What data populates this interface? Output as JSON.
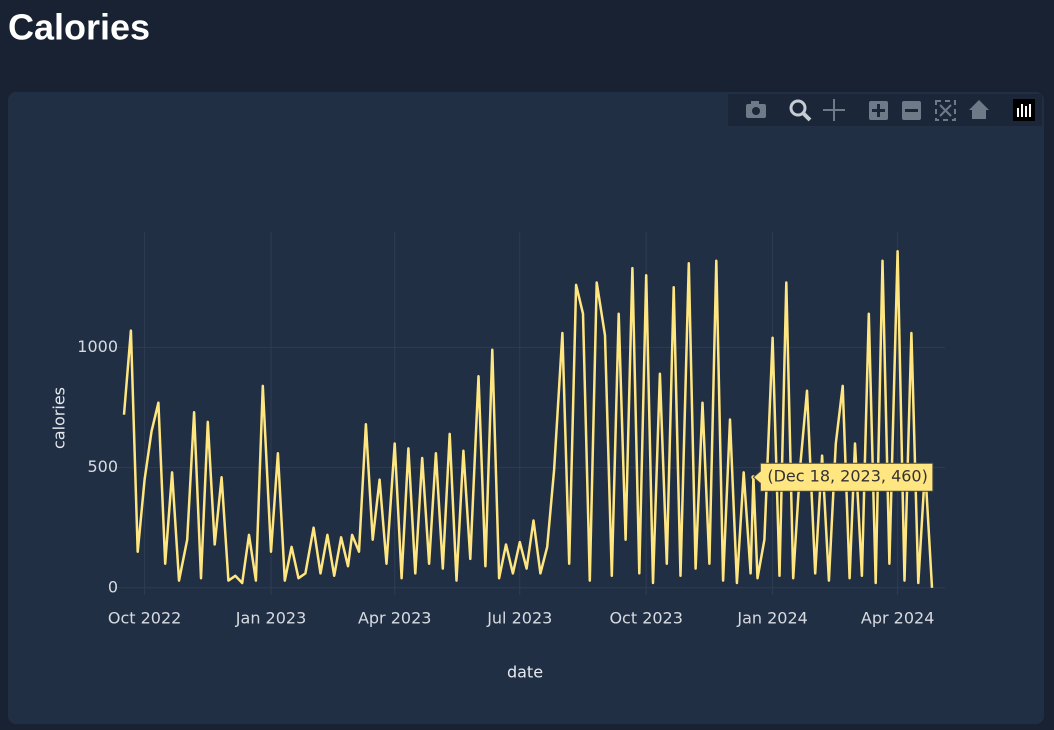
{
  "chart_data": {
    "type": "line",
    "title": "Calories",
    "xlabel": "date",
    "ylabel": "calories",
    "color": "#ffe680",
    "grid": true,
    "xlim": [
      "2022-09-16",
      "2024-04-26"
    ],
    "ylim": [
      -30,
      1480
    ],
    "yticks": [
      0,
      500,
      1000
    ],
    "xticks": [
      {
        "value": "2022-10-01",
        "label": "Oct 2022"
      },
      {
        "value": "2023-01-01",
        "label": "Jan 2023"
      },
      {
        "value": "2023-04-01",
        "label": "Apr 2023"
      },
      {
        "value": "2023-07-01",
        "label": "Jul 2023"
      },
      {
        "value": "2023-10-01",
        "label": "Oct 2023"
      },
      {
        "value": "2024-01-01",
        "label": "Jan 2024"
      },
      {
        "value": "2024-04-01",
        "label": "Apr 2024"
      }
    ],
    "x": [
      "2022-09-16",
      "2022-09-21",
      "2022-09-26",
      "2022-10-01",
      "2022-10-06",
      "2022-10-11",
      "2022-10-16",
      "2022-10-21",
      "2022-10-26",
      "2022-11-01",
      "2022-11-06",
      "2022-11-11",
      "2022-11-16",
      "2022-11-21",
      "2022-11-26",
      "2022-12-01",
      "2022-12-06",
      "2022-12-11",
      "2022-12-16",
      "2022-12-21",
      "2022-12-26",
      "2023-01-01",
      "2023-01-06",
      "2023-01-11",
      "2023-01-16",
      "2023-01-21",
      "2023-01-26",
      "2023-02-01",
      "2023-02-06",
      "2023-02-11",
      "2023-02-16",
      "2023-02-21",
      "2023-02-26",
      "2023-03-01",
      "2023-03-06",
      "2023-03-11",
      "2023-03-16",
      "2023-03-21",
      "2023-03-26",
      "2023-04-01",
      "2023-04-06",
      "2023-04-11",
      "2023-04-16",
      "2023-04-21",
      "2023-04-26",
      "2023-05-01",
      "2023-05-06",
      "2023-05-11",
      "2023-05-16",
      "2023-05-21",
      "2023-05-26",
      "2023-06-01",
      "2023-06-06",
      "2023-06-11",
      "2023-06-16",
      "2023-06-21",
      "2023-06-26",
      "2023-07-01",
      "2023-07-06",
      "2023-07-11",
      "2023-07-16",
      "2023-07-21",
      "2023-07-26",
      "2023-08-01",
      "2023-08-06",
      "2023-08-11",
      "2023-08-16",
      "2023-08-21",
      "2023-08-26",
      "2023-09-01",
      "2023-09-06",
      "2023-09-11",
      "2023-09-16",
      "2023-09-21",
      "2023-09-26",
      "2023-10-01",
      "2023-10-06",
      "2023-10-11",
      "2023-10-16",
      "2023-10-21",
      "2023-10-26",
      "2023-11-01",
      "2023-11-06",
      "2023-11-11",
      "2023-11-16",
      "2023-11-21",
      "2023-11-26",
      "2023-12-01",
      "2023-12-06",
      "2023-12-11",
      "2023-12-16",
      "2023-12-18",
      "2023-12-21",
      "2023-12-26",
      "2024-01-01",
      "2024-01-06",
      "2024-01-11",
      "2024-01-16",
      "2024-01-21",
      "2024-01-26",
      "2024-02-01",
      "2024-02-06",
      "2024-02-11",
      "2024-02-16",
      "2024-02-21",
      "2024-02-26",
      "2024-03-01",
      "2024-03-06",
      "2024-03-11",
      "2024-03-16",
      "2024-03-21",
      "2024-03-26",
      "2024-04-01",
      "2024-04-06",
      "2024-04-11",
      "2024-04-16",
      "2024-04-21",
      "2024-04-26"
    ],
    "values": [
      720,
      1070,
      150,
      450,
      650,
      770,
      100,
      480,
      30,
      200,
      730,
      40,
      690,
      180,
      460,
      30,
      50,
      20,
      220,
      30,
      840,
      150,
      560,
      30,
      170,
      40,
      60,
      250,
      60,
      220,
      50,
      210,
      90,
      220,
      150,
      680,
      200,
      450,
      100,
      600,
      40,
      580,
      60,
      540,
      100,
      560,
      80,
      640,
      30,
      570,
      120,
      880,
      90,
      990,
      40,
      180,
      60,
      190,
      80,
      280,
      60,
      170,
      490,
      1060,
      100,
      1260,
      1140,
      30,
      1270,
      1050,
      50,
      1140,
      200,
      1330,
      60,
      1300,
      20,
      890,
      100,
      1250,
      50,
      1350,
      80,
      770,
      100,
      1360,
      30,
      700,
      20,
      480,
      60,
      460,
      40,
      200,
      1040,
      50,
      1270,
      40,
      500,
      820,
      60,
      550,
      30,
      600,
      840,
      40,
      600,
      50,
      1140,
      20,
      1360,
      100,
      1400,
      30,
      1060,
      20,
      500,
      0
    ],
    "hover": {
      "x": "2023-12-18",
      "y": 460,
      "label": "(Dec 18, 2023, 460)"
    }
  }
}
